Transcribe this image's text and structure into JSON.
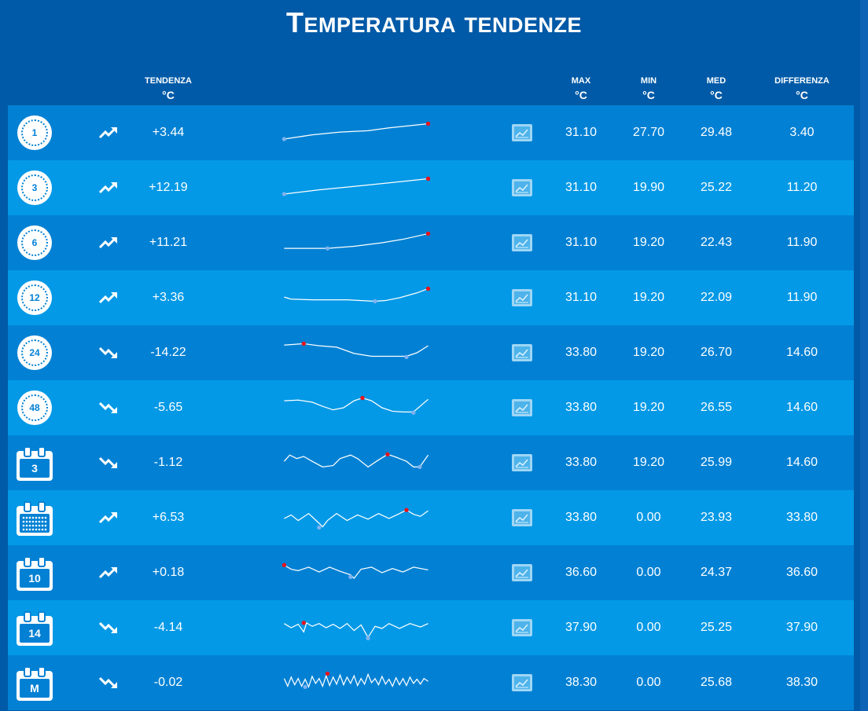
{
  "title": "Temperatura tendenze",
  "headers": {
    "trend": "Tendenza",
    "trend_unit": "°C",
    "max": "Max",
    "max_unit": "°C",
    "min": "Min",
    "min_unit": "°C",
    "med": "Med",
    "med_unit": "°C",
    "diff": "Differenza",
    "diff_unit": "°C"
  },
  "colors": {
    "background": "#005aa7",
    "row_dark": "#0281d4",
    "row_light": "#0399e6",
    "max_marker": "#e8141b",
    "min_marker": "#7fb2f0"
  },
  "rows": [
    {
      "period_icon": "clock-icon",
      "period_label": "1",
      "direction": "up",
      "trend": "+3.44",
      "max": "31.10",
      "min": "27.70",
      "med": "29.48",
      "diff": "3.40"
    },
    {
      "period_icon": "clock-icon",
      "period_label": "3",
      "direction": "up",
      "trend": "+12.19",
      "max": "31.10",
      "min": "19.90",
      "med": "25.22",
      "diff": "11.20"
    },
    {
      "period_icon": "clock-icon",
      "period_label": "6",
      "direction": "up",
      "trend": "+11.21",
      "max": "31.10",
      "min": "19.20",
      "med": "22.43",
      "diff": "11.90"
    },
    {
      "period_icon": "clock-icon",
      "period_label": "12",
      "direction": "up",
      "trend": "+3.36",
      "max": "31.10",
      "min": "19.20",
      "med": "22.09",
      "diff": "11.90"
    },
    {
      "period_icon": "clock-icon",
      "period_label": "24",
      "direction": "down",
      "trend": "-14.22",
      "max": "33.80",
      "min": "19.20",
      "med": "26.70",
      "diff": "14.60"
    },
    {
      "period_icon": "clock-icon",
      "period_label": "48",
      "direction": "down",
      "trend": "-5.65",
      "max": "33.80",
      "min": "19.20",
      "med": "26.55",
      "diff": "14.60"
    },
    {
      "period_icon": "calendar-icon",
      "period_label": "3",
      "direction": "down",
      "trend": "-1.12",
      "max": "33.80",
      "min": "19.20",
      "med": "25.99",
      "diff": "14.60"
    },
    {
      "period_icon": "calendar-week-icon",
      "period_label": "",
      "direction": "up",
      "trend": "+6.53",
      "max": "33.80",
      "min": "0.00",
      "med": "23.93",
      "diff": "33.80"
    },
    {
      "period_icon": "calendar-icon",
      "period_label": "10",
      "direction": "up",
      "trend": "+0.18",
      "max": "36.60",
      "min": "0.00",
      "med": "24.37",
      "diff": "36.60"
    },
    {
      "period_icon": "calendar-icon",
      "period_label": "14",
      "direction": "down",
      "trend": "-4.14",
      "max": "37.90",
      "min": "0.00",
      "med": "25.25",
      "diff": "37.90"
    },
    {
      "period_icon": "calendar-icon",
      "period_label": "M",
      "direction": "down",
      "trend": "-0.02",
      "max": "38.30",
      "min": "0.00",
      "med": "25.68",
      "diff": "38.30"
    }
  ]
}
